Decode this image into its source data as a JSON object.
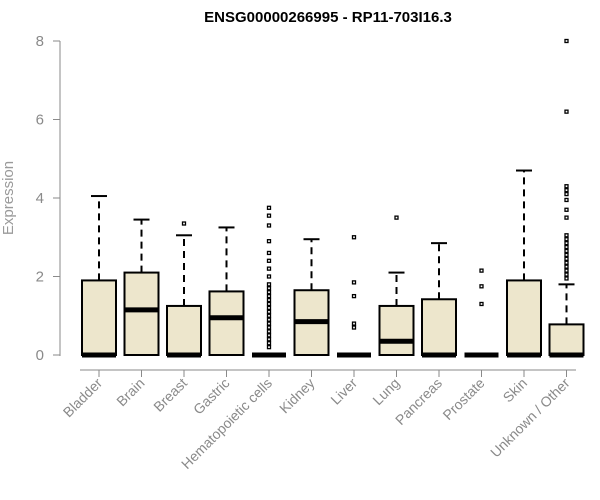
{
  "chart_data": {
    "type": "box",
    "title": "ENSG00000266995 - RP11-703I16.3",
    "ylabel": "Expression",
    "xlabel": "",
    "ylim": [
      0,
      8
    ],
    "yticks": [
      0,
      2,
      4,
      6,
      8
    ],
    "grid": false,
    "box_color": "#ede6cc",
    "outline_color": "#000000",
    "categories": [
      "Bladder",
      "Brain",
      "Breast",
      "Gastric",
      "Hematopoietic cells",
      "Kidney",
      "Liver",
      "Lung",
      "Pancreas",
      "Prostate",
      "Skin",
      "Unknown / Other"
    ],
    "boxes": [
      {
        "q1": 0,
        "median": 0,
        "q3": 1.9,
        "whisker_low": 0,
        "whisker_high": 4.05,
        "outliers": []
      },
      {
        "q1": 0,
        "median": 1.15,
        "q3": 2.1,
        "whisker_low": 0,
        "whisker_high": 3.45,
        "outliers": []
      },
      {
        "q1": 0,
        "median": 0,
        "q3": 1.25,
        "whisker_low": 0,
        "whisker_high": 3.05,
        "outliers": [
          3.35
        ]
      },
      {
        "q1": 0,
        "median": 0.95,
        "q3": 1.62,
        "whisker_low": 0,
        "whisker_high": 3.25,
        "outliers": []
      },
      {
        "q1": 0,
        "median": 0,
        "q3": 0,
        "whisker_low": 0,
        "whisker_high": 0,
        "outliers": [
          0.2,
          0.3,
          0.4,
          0.5,
          0.6,
          0.7,
          0.8,
          0.9,
          1.0,
          1.1,
          1.2,
          1.3,
          1.4,
          1.5,
          1.6,
          1.7,
          1.8,
          2.0,
          2.2,
          2.4,
          2.6,
          2.9,
          3.3,
          3.55,
          3.75
        ]
      },
      {
        "q1": 0,
        "median": 0.85,
        "q3": 1.65,
        "whisker_low": 0,
        "whisker_high": 2.95,
        "outliers": []
      },
      {
        "q1": 0,
        "median": 0,
        "q3": 0,
        "whisker_low": 0,
        "whisker_high": 0,
        "outliers": [
          0.7,
          0.8,
          1.5,
          1.85,
          3.0
        ]
      },
      {
        "q1": 0,
        "median": 0.35,
        "q3": 1.25,
        "whisker_low": 0,
        "whisker_high": 2.1,
        "outliers": [
          3.5
        ]
      },
      {
        "q1": 0,
        "median": 0,
        "q3": 1.42,
        "whisker_low": 0,
        "whisker_high": 2.85,
        "outliers": []
      },
      {
        "q1": 0,
        "median": 0,
        "q3": 0,
        "whisker_low": 0,
        "whisker_high": 0,
        "outliers": [
          1.3,
          1.75,
          2.15
        ]
      },
      {
        "q1": 0,
        "median": 0,
        "q3": 1.9,
        "whisker_low": 0,
        "whisker_high": 4.7,
        "outliers": []
      },
      {
        "q1": 0,
        "median": 0,
        "q3": 0.78,
        "whisker_low": 0,
        "whisker_high": 1.8,
        "outliers": [
          1.95,
          2.05,
          2.15,
          2.25,
          2.35,
          2.45,
          2.55,
          2.65,
          2.75,
          2.85,
          2.95,
          3.05,
          3.5,
          3.7,
          3.95,
          4.1,
          4.2,
          4.3,
          6.2,
          8.0
        ]
      }
    ]
  }
}
